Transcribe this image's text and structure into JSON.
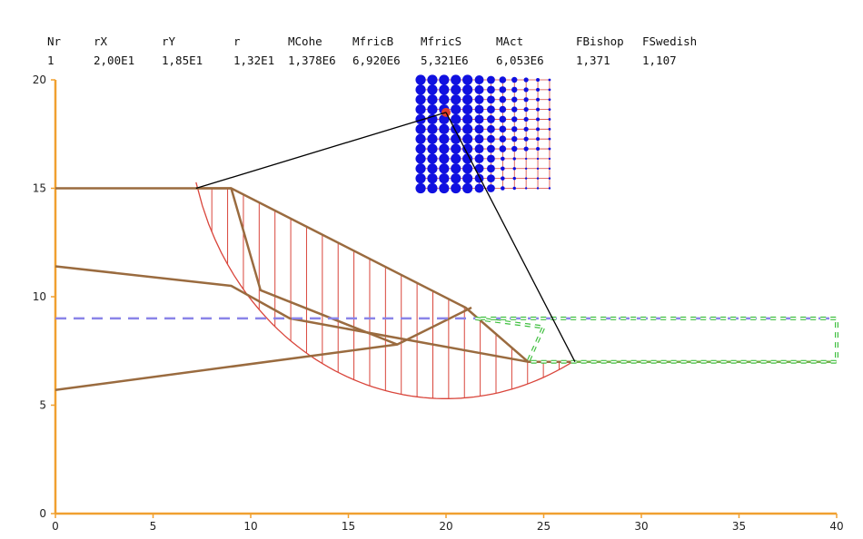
{
  "results_table": {
    "headers": [
      "Nr",
      "rX",
      "rY",
      "r",
      "MCohe",
      "MfricB",
      "MfricS",
      "MAct",
      "FBishop",
      "FSwedish"
    ],
    "values": [
      "1",
      "2,00E1",
      "1,85E1",
      "1,32E1",
      "1,378E6",
      "6,920E6",
      "5,321E6",
      "6,053E6",
      "1,371",
      "1,107"
    ]
  },
  "chart_data": {
    "type": "line",
    "title": "",
    "xlabel": "",
    "ylabel": "",
    "xlim": [
      0,
      40
    ],
    "ylim": [
      0,
      20
    ],
    "x_ticks": [
      "0",
      "5",
      "10",
      "15",
      "20",
      "25",
      "30",
      "35",
      "40"
    ],
    "y_ticks": [
      "0",
      "5",
      "10",
      "15",
      "20"
    ],
    "grid": false,
    "colors": {
      "axis": "#f0a030",
      "soil_layer": "#9a6b3f",
      "slip_slices": "#d9453b",
      "water_level": "#8a84e8",
      "ground_right": "#74b04a",
      "load_outline": "#3fbf3f",
      "grid_points": "#1010e0",
      "grid_lines": "#d9453b",
      "critical_center": "#e03c2c",
      "radius_lines": "#000000"
    },
    "soil_layers": [
      [
        [
          0,
          15
        ],
        [
          9,
          15
        ],
        [
          21,
          9.5
        ],
        [
          24.2,
          7
        ],
        [
          26.6,
          7
        ]
      ],
      [
        [
          0,
          11.4
        ],
        [
          9,
          10.5
        ],
        [
          12,
          9
        ],
        [
          24.2,
          7
        ]
      ],
      [
        [
          0,
          5.7
        ],
        [
          17.5,
          7.8
        ],
        [
          21.3,
          9.5
        ]
      ],
      [
        [
          7.2,
          15
        ],
        [
          9,
          15
        ],
        [
          10.5,
          10.3
        ],
        [
          17.5,
          7.8
        ]
      ]
    ],
    "ground_right": [
      [
        26.6,
        7
      ],
      [
        40,
        7
      ]
    ],
    "water_level": {
      "y": 9,
      "x_from": 0,
      "x_to": 40
    },
    "slip_circle": {
      "center": [
        20,
        18.5
      ],
      "radius": 13.2,
      "x_entry": 7.2,
      "x_exit": 26.6
    },
    "slice_count": 24,
    "radius_lines": [
      [
        [
          7.2,
          15
        ],
        [
          20,
          18.5
        ]
      ],
      [
        [
          20,
          18.5
        ],
        [
          26.6,
          7
        ]
      ]
    ],
    "search_grid": {
      "x_range": [
        18.7,
        25.3
      ],
      "y_range": [
        15,
        20
      ],
      "nx": 12,
      "ny": 12
    },
    "load_outline": [
      [
        [
          21.5,
          9
        ],
        [
          25,
          8.6
        ],
        [
          24.2,
          7
        ],
        [
          40,
          7
        ],
        [
          40,
          9
        ],
        [
          21.5,
          9
        ]
      ]
    ]
  }
}
